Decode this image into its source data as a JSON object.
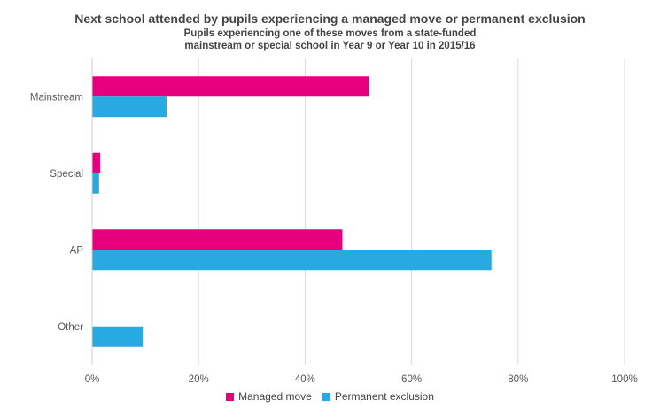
{
  "chart_data": {
    "type": "bar",
    "orientation": "horizontal",
    "title": "Next school attended by pupils experiencing a managed move or permanent exclusion",
    "subtitle": [
      "Pupils experiencing one of these moves from a state-funded",
      "mainstream or special school in Year 9 or Year 10 in 2015/16"
    ],
    "categories": [
      "Mainstream",
      "Special",
      "AP",
      "Other"
    ],
    "series": [
      {
        "name": "Managed move",
        "color": "#e6007e",
        "values": [
          52,
          1.5,
          47,
          0
        ]
      },
      {
        "name": "Permanent exclusion",
        "color": "#29a9e1",
        "values": [
          14,
          1.3,
          75,
          9.5
        ]
      }
    ],
    "xlim": [
      0,
      100
    ],
    "xticks": [
      "0%",
      "20%",
      "40%",
      "60%",
      "80%",
      "100%"
    ],
    "grid": true,
    "legend_position": "bottom"
  }
}
